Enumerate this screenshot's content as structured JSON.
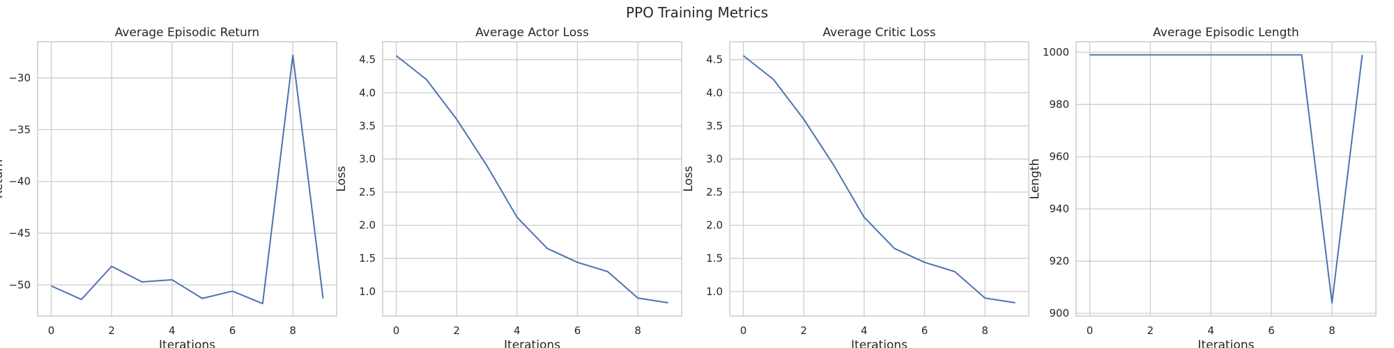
{
  "title": "PPO Training Metrics",
  "colors": {
    "line": "#4c72b0",
    "grid": "#cccccc",
    "axes_edge": "#cccccc",
    "background": "#ffffff",
    "text": "#262626"
  },
  "chart_data": [
    {
      "type": "line",
      "title": "Average Episodic Return",
      "xlabel": "Iterations",
      "ylabel": "Return",
      "x": [
        0,
        1,
        2,
        3,
        4,
        5,
        6,
        7,
        8,
        9
      ],
      "series": [
        {
          "values": [
            -50.1,
            -51.4,
            -48.2,
            -49.7,
            -49.5,
            -51.3,
            -50.6,
            -51.8,
            -27.8,
            -51.3
          ]
        }
      ],
      "xlim": [
        -0.45,
        9.45
      ],
      "ylim": [
        -53.0,
        -26.5
      ],
      "xticks": [
        0,
        2,
        4,
        6,
        8
      ],
      "yticks": [
        -50,
        -45,
        -40,
        -35,
        -30
      ],
      "ytick_labels": [
        "−50",
        "−45",
        "−40",
        "−35",
        "−30"
      ],
      "grid": true
    },
    {
      "type": "line",
      "title": "Average Actor Loss",
      "xlabel": "Iterations",
      "ylabel": "Loss",
      "x": [
        0,
        1,
        2,
        3,
        4,
        5,
        6,
        7,
        8,
        9
      ],
      "series": [
        {
          "values": [
            4.56,
            4.2,
            3.6,
            2.9,
            2.12,
            1.65,
            1.44,
            1.3,
            0.9,
            0.83
          ]
        }
      ],
      "xlim": [
        -0.45,
        9.45
      ],
      "ylim": [
        0.63,
        4.77
      ],
      "xticks": [
        0,
        2,
        4,
        6,
        8
      ],
      "yticks": [
        1.0,
        1.5,
        2.0,
        2.5,
        3.0,
        3.5,
        4.0,
        4.5
      ],
      "ytick_labels": [
        "1.0",
        "1.5",
        "2.0",
        "2.5",
        "3.0",
        "3.5",
        "4.0",
        "4.5"
      ],
      "grid": true
    },
    {
      "type": "line",
      "title": "Average Critic Loss",
      "xlabel": "Iterations",
      "ylabel": "Loss",
      "x": [
        0,
        1,
        2,
        3,
        4,
        5,
        6,
        7,
        8,
        9
      ],
      "series": [
        {
          "values": [
            4.56,
            4.2,
            3.6,
            2.9,
            2.12,
            1.65,
            1.44,
            1.3,
            0.9,
            0.83
          ]
        }
      ],
      "xlim": [
        -0.45,
        9.45
      ],
      "ylim": [
        0.63,
        4.77
      ],
      "xticks": [
        0,
        2,
        4,
        6,
        8
      ],
      "yticks": [
        1.0,
        1.5,
        2.0,
        2.5,
        3.0,
        3.5,
        4.0,
        4.5
      ],
      "ytick_labels": [
        "1.0",
        "1.5",
        "2.0",
        "2.5",
        "3.0",
        "3.5",
        "4.0",
        "4.5"
      ],
      "grid": true
    },
    {
      "type": "line",
      "title": "Average Episodic Length",
      "xlabel": "Iterations",
      "ylabel": "Length",
      "x": [
        0,
        1,
        2,
        3,
        4,
        5,
        6,
        7,
        8,
        9
      ],
      "series": [
        {
          "values": [
            999,
            999,
            999,
            999,
            999,
            999,
            999,
            999,
            904,
            999
          ]
        }
      ],
      "xlim": [
        -0.45,
        9.45
      ],
      "ylim": [
        899,
        1004
      ],
      "xticks": [
        0,
        2,
        4,
        6,
        8
      ],
      "yticks": [
        900,
        920,
        940,
        960,
        980,
        1000
      ],
      "ytick_labels": [
        "900",
        "920",
        "940",
        "960",
        "980",
        "1000"
      ],
      "grid": true
    }
  ]
}
